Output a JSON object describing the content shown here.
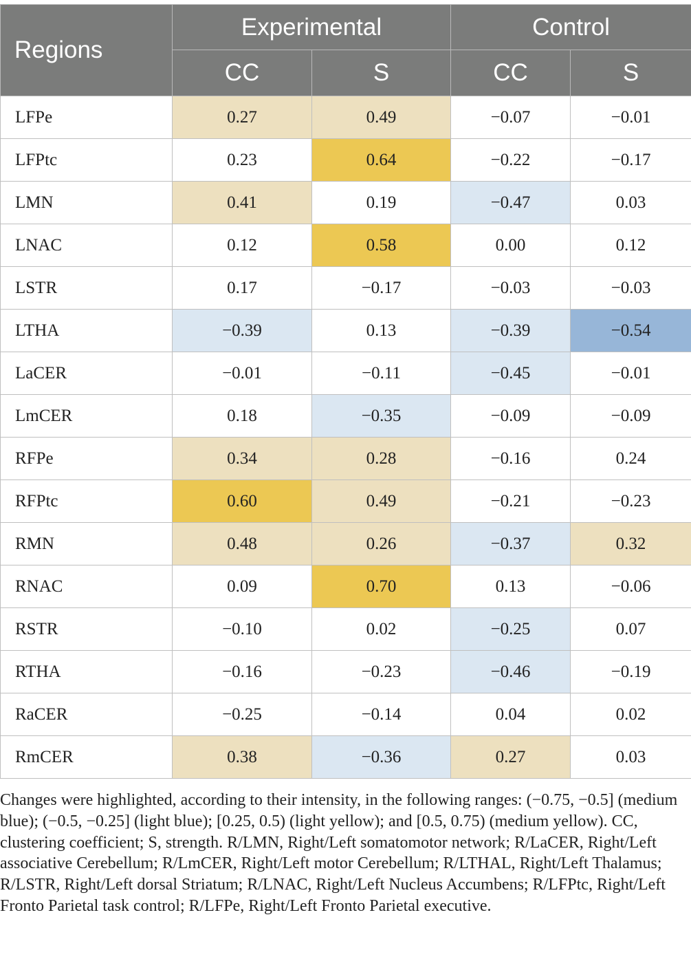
{
  "header": {
    "regions": "Regions",
    "experimental": "Experimental",
    "control": "Control",
    "cc": "CC",
    "s": "S"
  },
  "highlight_colors": {
    "none": "#ffffff",
    "light_yellow": "#ede0bf",
    "medium_yellow": "#ecc853",
    "light_blue": "#dbe7f2",
    "medium_blue": "#97b6d8"
  },
  "rows": [
    {
      "region": "LFPe",
      "exp_cc": "0.27",
      "exp_s": "0.49",
      "ctl_cc": "−0.07",
      "ctl_s": "−0.01"
    },
    {
      "region": "LFPtc",
      "exp_cc": "0.23",
      "exp_s": "0.64",
      "ctl_cc": "−0.22",
      "ctl_s": "−0.17"
    },
    {
      "region": "LMN",
      "exp_cc": "0.41",
      "exp_s": "0.19",
      "ctl_cc": "−0.47",
      "ctl_s": "0.03"
    },
    {
      "region": "LNAC",
      "exp_cc": "0.12",
      "exp_s": "0.58",
      "ctl_cc": "0.00",
      "ctl_s": "0.12"
    },
    {
      "region": "LSTR",
      "exp_cc": "0.17",
      "exp_s": "−0.17",
      "ctl_cc": "−0.03",
      "ctl_s": "−0.03"
    },
    {
      "region": "LTHA",
      "exp_cc": "−0.39",
      "exp_s": "0.13",
      "ctl_cc": "−0.39",
      "ctl_s": "−0.54"
    },
    {
      "region": "LaCER",
      "exp_cc": "−0.01",
      "exp_s": "−0.11",
      "ctl_cc": "−0.45",
      "ctl_s": "−0.01"
    },
    {
      "region": "LmCER",
      "exp_cc": "0.18",
      "exp_s": "−0.35",
      "ctl_cc": "−0.09",
      "ctl_s": "−0.09"
    },
    {
      "region": "RFPe",
      "exp_cc": "0.34",
      "exp_s": "0.28",
      "ctl_cc": "−0.16",
      "ctl_s": "0.24"
    },
    {
      "region": "RFPtc",
      "exp_cc": "0.60",
      "exp_s": "0.49",
      "ctl_cc": "−0.21",
      "ctl_s": "−0.23"
    },
    {
      "region": "RMN",
      "exp_cc": "0.48",
      "exp_s": "0.26",
      "ctl_cc": "−0.37",
      "ctl_s": "0.32"
    },
    {
      "region": "RNAC",
      "exp_cc": "0.09",
      "exp_s": "0.70",
      "ctl_cc": "0.13",
      "ctl_s": "−0.06"
    },
    {
      "region": "RSTR",
      "exp_cc": "−0.10",
      "exp_s": "0.02",
      "ctl_cc": "−0.25",
      "ctl_s": "0.07"
    },
    {
      "region": "RTHA",
      "exp_cc": "−0.16",
      "exp_s": "−0.23",
      "ctl_cc": "−0.46",
      "ctl_s": "−0.19"
    },
    {
      "region": "RaCER",
      "exp_cc": "−0.25",
      "exp_s": "−0.14",
      "ctl_cc": "0.04",
      "ctl_s": "0.02"
    },
    {
      "region": "RmCER",
      "exp_cc": "0.38",
      "exp_s": "−0.36",
      "ctl_cc": "0.27",
      "ctl_s": "0.03"
    }
  ],
  "footnote": "Changes were highlighted, according to their intensity, in the following ranges: (−0.75, −0.5] (medium blue); (−0.5, −0.25] (light blue); [0.25, 0.5) (light yellow); and [0.5, 0.75) (medium yellow). CC, clustering coefficient; S, strength. R/LMN, Right/Left somatomotor network; R/LaCER, Right/Left associative Cerebellum; R/LmCER, Right/Left motor Cerebellum; R/LTHAL, Right/Left Thalamus; R/LSTR, Right/Left dorsal Striatum; R/LNAC, Right/Left Nucleus Accumbens; R/LFPtc, Right/Left Fronto Parietal task control; R/LFPe, Right/Left Fronto Parietal executive."
}
